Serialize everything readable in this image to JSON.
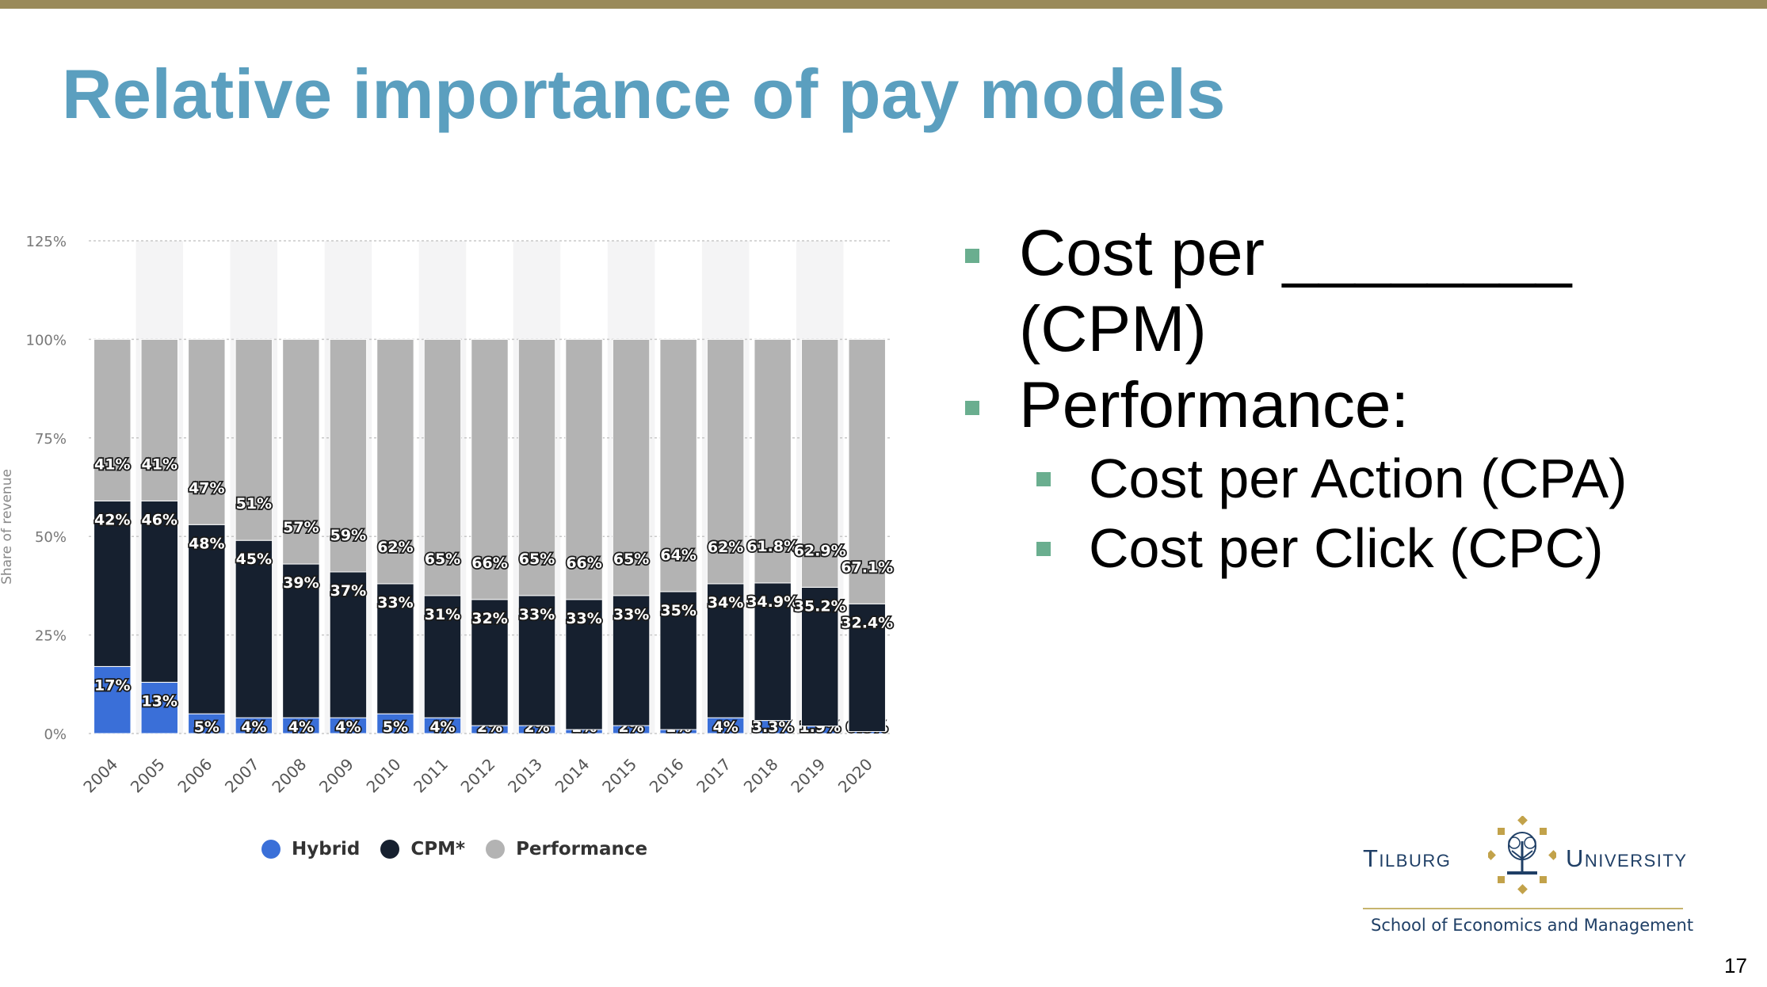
{
  "slide": {
    "title": "Relative importance of pay models",
    "page_number": "17",
    "bullets": {
      "cpm": "Cost per ________ (CPM)",
      "performance": "Performance:",
      "cpa": "Cost per Action (CPA)",
      "cpc": "Cost per Click (CPC)"
    },
    "logo": {
      "word_left": "Tilburg",
      "word_right": "University",
      "school": "School of Economics and Management"
    }
  },
  "chart_data": {
    "type": "bar",
    "stacked": true,
    "ylabel": "Share of revenue",
    "ylim": [
      0,
      125
    ],
    "yticks": [
      0,
      25,
      50,
      75,
      100,
      125
    ],
    "ytick_labels": [
      "0%",
      "25%",
      "50%",
      "75%",
      "100%",
      "125%"
    ],
    "grid": true,
    "legend_position": "bottom-center",
    "categories": [
      "2004",
      "2005",
      "2006",
      "2007",
      "2008",
      "2009",
      "2010",
      "2011",
      "2012",
      "2013",
      "2014",
      "2015",
      "2016",
      "2017",
      "2018",
      "2019",
      "2020"
    ],
    "series": [
      {
        "name": "Hybrid",
        "color": "#3a6fd8",
        "values": [
          17,
          13,
          5,
          4,
          4,
          4,
          5,
          4,
          2,
          2,
          1,
          2,
          1,
          4,
          3.3,
          1.9,
          0.5
        ],
        "labels": [
          "17%",
          "13%",
          "5%",
          "4%",
          "4%",
          "4%",
          "5%",
          "4%",
          "2%",
          "2%",
          "1%",
          "2%",
          "1%",
          "4%",
          "3.3%",
          "1.9%",
          "0.5%"
        ]
      },
      {
        "name": "CPM*",
        "color": "#16202f",
        "values": [
          42,
          46,
          48,
          45,
          39,
          37,
          33,
          31,
          32,
          33,
          33,
          33,
          35,
          34,
          34.9,
          35.2,
          32.4
        ],
        "labels": [
          "42%",
          "46%",
          "48%",
          "45%",
          "39%",
          "37%",
          "33%",
          "31%",
          "32%",
          "33%",
          "33%",
          "33%",
          "35%",
          "34%",
          "34.9%",
          "35.2%",
          "32.4%"
        ]
      },
      {
        "name": "Performance",
        "color": "#b3b3b3",
        "values": [
          41,
          41,
          47,
          51,
          57,
          59,
          62,
          65,
          66,
          65,
          66,
          65,
          64,
          62,
          61.8,
          62.9,
          67.1
        ],
        "labels": [
          "41%",
          "41%",
          "47%",
          "51%",
          "57%",
          "59%",
          "62%",
          "65%",
          "66%",
          "65%",
          "66%",
          "65%",
          "64%",
          "62%",
          "61.8%",
          "62.9%",
          "67.1%"
        ]
      }
    ]
  }
}
